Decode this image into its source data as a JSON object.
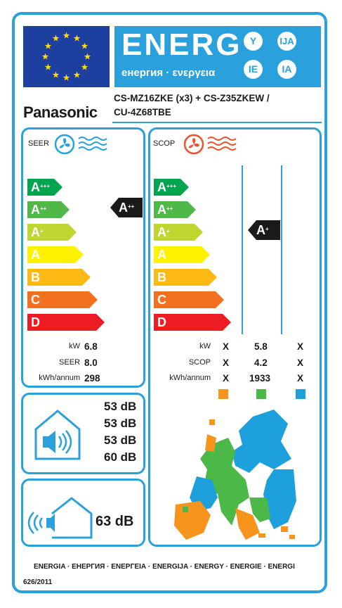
{
  "header": {
    "energy_word": "ENERG",
    "energy_sub": "енергия · ενεργεια",
    "suffixes": [
      "Y",
      "IJA",
      "IE",
      "IA"
    ]
  },
  "brand": "Panasonic",
  "model": {
    "line1": "CS-MZ16ZKE (x3) + CS-Z35ZKEW /",
    "line2": "CU-4Z68TBE"
  },
  "classes": [
    {
      "letter": "A",
      "sup": "+++",
      "color": "#00a550"
    },
    {
      "letter": "A",
      "sup": "++",
      "color": "#50b848"
    },
    {
      "letter": "A",
      "sup": "+",
      "color": "#bed62f"
    },
    {
      "letter": "A",
      "sup": "",
      "color": "#fff200"
    },
    {
      "letter": "B",
      "sup": "",
      "color": "#fdb913"
    },
    {
      "letter": "C",
      "sup": "",
      "color": "#f37021"
    },
    {
      "letter": "D",
      "sup": "",
      "color": "#ed1c24"
    }
  ],
  "seer": {
    "title": "SEER",
    "rating": {
      "letter": "A",
      "sup": "++"
    },
    "labels": [
      "kW",
      "SEER",
      "kWh/annum"
    ],
    "values": [
      "6.8",
      "8.0",
      "298"
    ]
  },
  "scop": {
    "title": "SCOP",
    "rating": {
      "letter": "A",
      "sup": "+"
    },
    "labels": [
      "kW",
      "SCOP",
      "kWh/annum"
    ],
    "columns": [
      {
        "values": [
          "X",
          "X",
          "X"
        ],
        "color": "#f7941d"
      },
      {
        "values": [
          "5.8",
          "4.2",
          "1933"
        ],
        "color": "#4cb848"
      },
      {
        "values": [
          "X",
          "X",
          "X"
        ],
        "color": "#1ea0dc"
      }
    ]
  },
  "indoor_noise": [
    "53 dB",
    "53 dB",
    "53 dB",
    "60 dB"
  ],
  "outdoor_noise": "63 dB",
  "footer": "ENERGIA · ЕНЕРГИЯ · ΕΝΕΡΓΕΙΑ · ENERGIJA · ENERGY · ENERGIE · ENERGI",
  "regulation": "626/2011",
  "colors": {
    "accent": "#2aa1dc",
    "eu_blue": "#1d3fa0",
    "eu_star": "#ffdd00",
    "rating_black": "#1a1a1a"
  }
}
